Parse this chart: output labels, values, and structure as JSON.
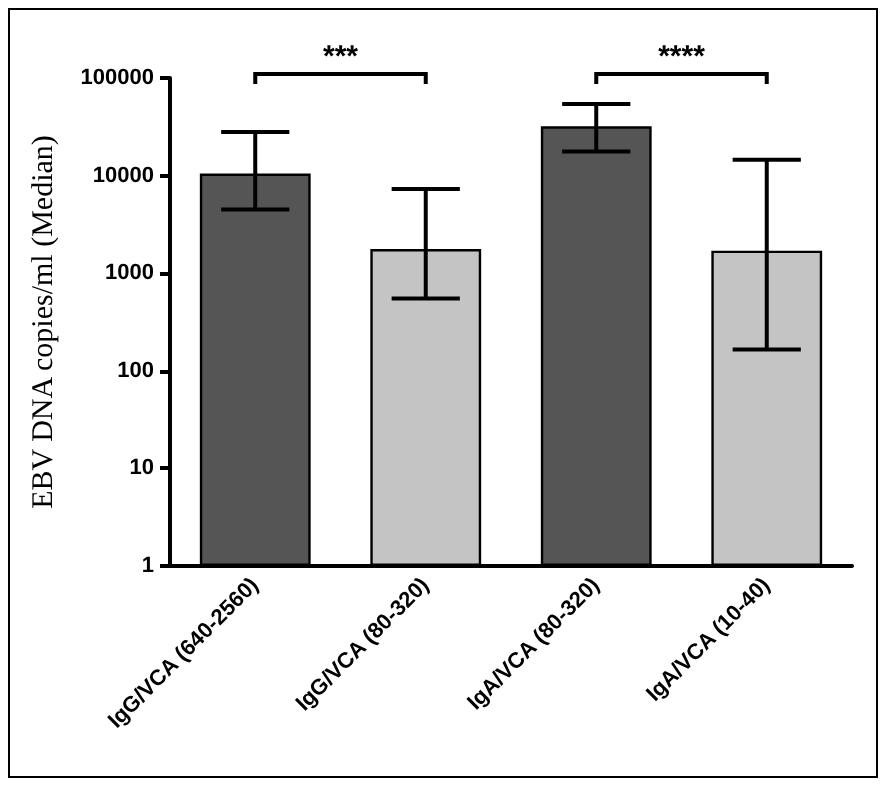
{
  "chart_data": {
    "type": "bar",
    "ylabel": "EBV DNA copies/ml (Median)",
    "categories": [
      "IgG/VCA (640-2560)",
      "IgG/VCA (80-320)",
      "IgA/VCA (80-320)",
      "IgA/VCA (10-40)"
    ],
    "values": [
      10500,
      1770,
      32000,
      1700
    ],
    "colors": [
      "#555555",
      "#c4c4c4",
      "#555555",
      "#c4c4c4"
    ],
    "errors": [
      [
        4500,
        28000
      ],
      [
        550,
        7300
      ],
      [
        17700,
        54000
      ],
      [
        165,
        14500
      ]
    ],
    "log": true,
    "ylim": [
      1,
      100000
    ],
    "yticks": [
      1,
      10,
      100,
      1000,
      10000,
      100000
    ],
    "annotations": [
      "***",
      "****"
    ],
    "grid": false
  }
}
